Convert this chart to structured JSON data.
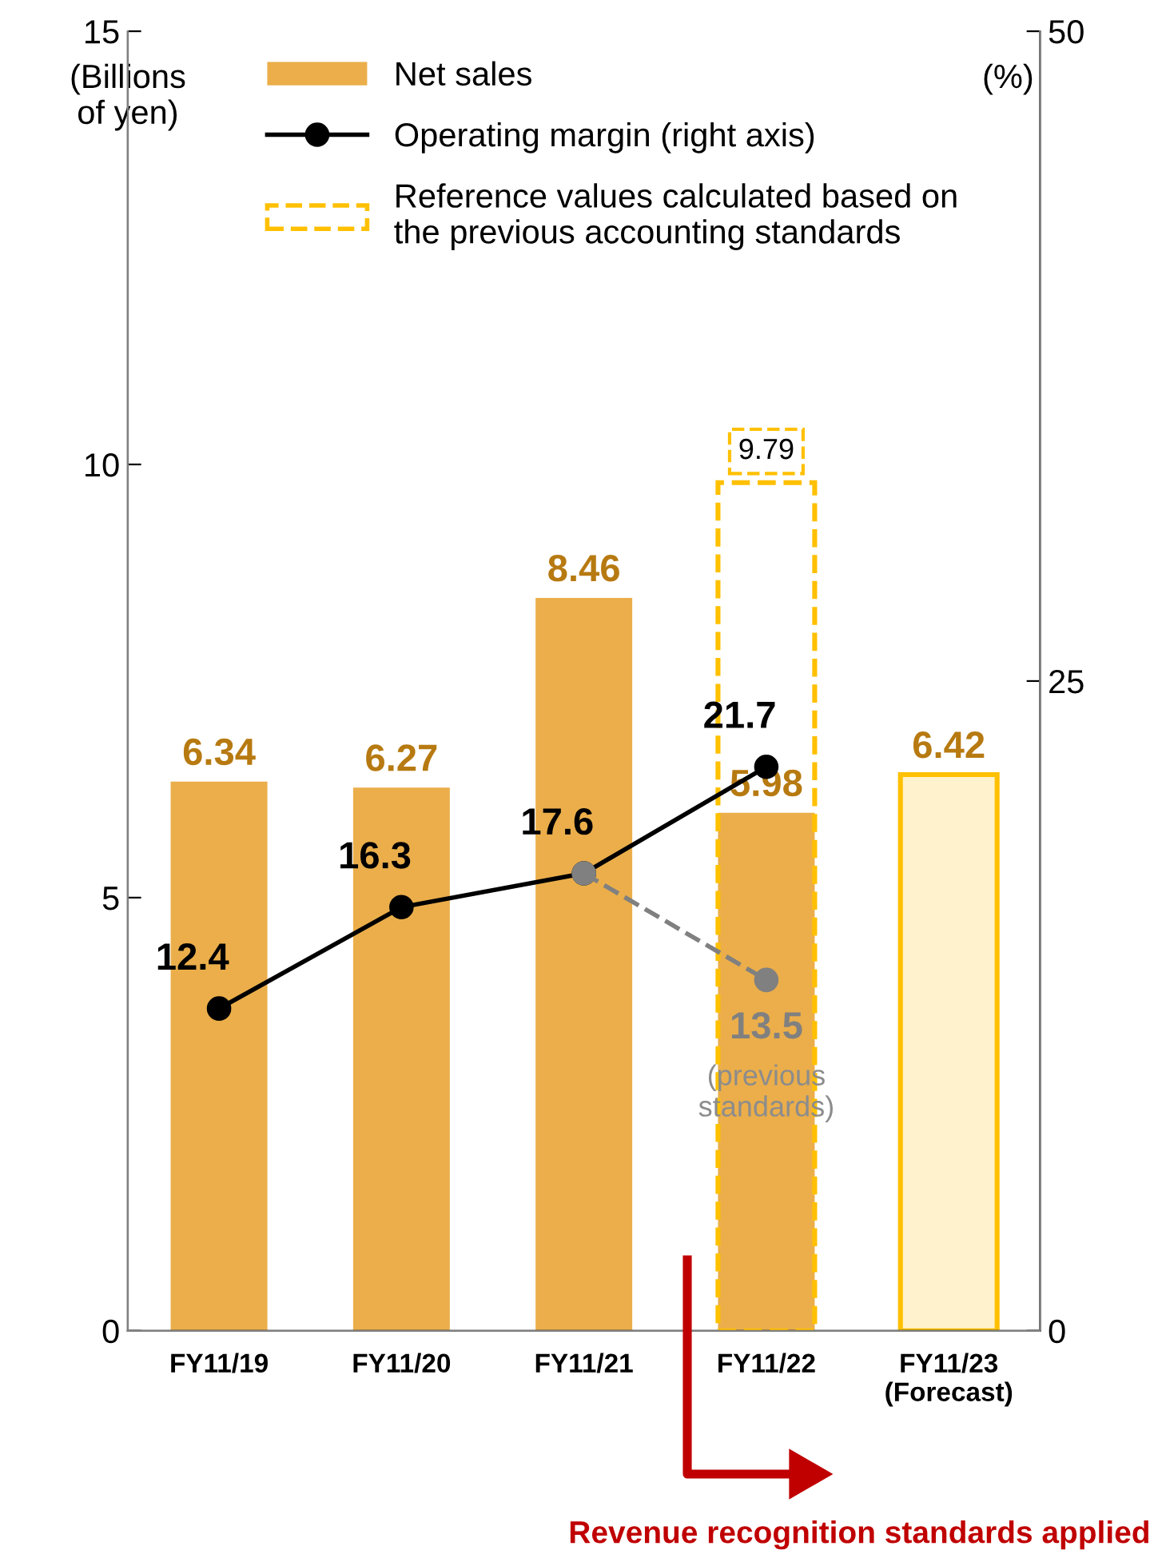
{
  "chart_data": {
    "type": "bar",
    "categories": [
      "FY11/19",
      "FY11/20",
      "FY11/21",
      "FY11/22",
      "FY11/23\n(Forecast)"
    ],
    "ylabel": "(Billions\nof yen)",
    "y2label": "(%)",
    "ylim": [
      0,
      15
    ],
    "yticks": [
      0,
      5,
      10,
      15
    ],
    "y2lim": [
      0,
      50
    ],
    "y2ticks": [
      0,
      25,
      50
    ],
    "legend": "top left",
    "grid": false,
    "data_labels": true,
    "series": [
      {
        "name": "Net sales",
        "color": "#ebae4a",
        "colors": [
          "#ebae4a",
          "#ebae4a",
          "#ebae4a",
          "#ebae4a",
          "#fff2cc"
        ],
        "values": [
          6.34,
          6.27,
          8.46,
          5.98,
          6.42
        ]
      },
      {
        "name": "Operating margin (right axis)",
        "type": "line",
        "axis": "y2",
        "color": "#000000",
        "marker": "circle",
        "values": [
          12.4,
          16.3,
          17.6,
          21.7,
          null
        ]
      },
      {
        "name": "Reference values calculated based on\nthe previous accounting standards",
        "color": "#ffc000",
        "line_style": "dashed",
        "values": [
          null,
          null,
          null,
          9.79,
          null
        ]
      },
      {
        "type": "line",
        "axis": "y2",
        "color": "#808080",
        "marker": "circle",
        "line_style": "dashed",
        "values": [
          null,
          null,
          17.6,
          13.5,
          null
        ],
        "value_labels": [
          null,
          null,
          null,
          "13.5",
          null
        ]
      }
    ],
    "annotations": [
      "(previous\nstandards)",
      "Revenue recognition standards applied"
    ]
  }
}
